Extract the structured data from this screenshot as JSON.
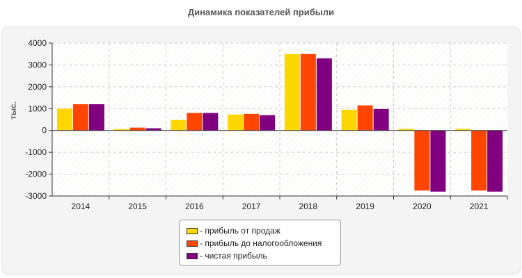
{
  "chart_data": {
    "type": "bar",
    "title": "Динамика показателей прибыли",
    "ylabel": "тыс.",
    "xlabel": "",
    "categories": [
      "2014",
      "2015",
      "2016",
      "2017",
      "2018",
      "2019",
      "2020",
      "2021"
    ],
    "ylim": [
      -3000,
      4000
    ],
    "yticks": [
      4000,
      3000,
      2000,
      1000,
      0,
      -1000,
      -2000,
      -3000
    ],
    "grid": true,
    "legend_position": "bottom",
    "series": [
      {
        "name": "- прибыль от продаж",
        "color": "#FFD700",
        "values": [
          1000,
          60,
          480,
          730,
          3500,
          950,
          70,
          70
        ]
      },
      {
        "name": "- прибыль до налогообложения",
        "color": "#FF4500",
        "values": [
          1200,
          130,
          800,
          760,
          3500,
          1150,
          -2750,
          -2750
        ]
      },
      {
        "name": "- чистая прибыль",
        "color": "#800080",
        "values": [
          1200,
          100,
          800,
          700,
          3300,
          980,
          -2800,
          -2800
        ]
      }
    ]
  }
}
